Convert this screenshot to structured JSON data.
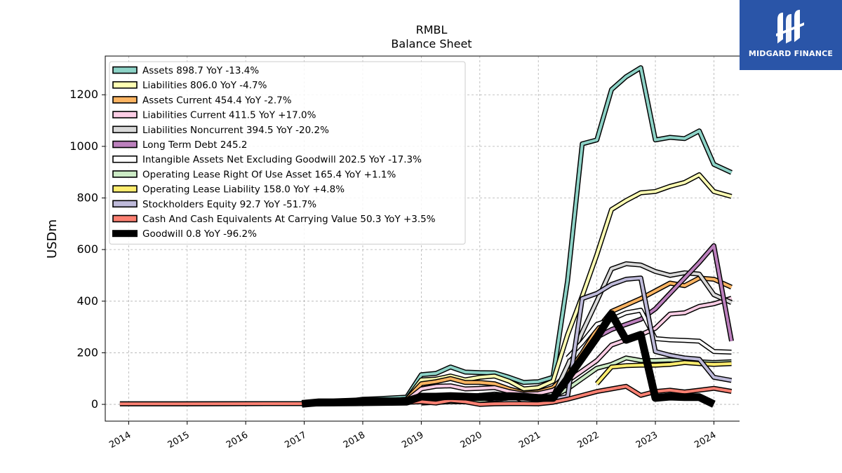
{
  "brand": {
    "name": "MIDGARD FINANCE",
    "logo_icon": "midgard-m-logo-icon"
  },
  "chart_data": {
    "type": "line",
    "title": "RMBL",
    "subtitle": "Balance  Sheet",
    "ylabel": "USDm",
    "xlabel": "",
    "xlim": [
      2013.6,
      2024.75
    ],
    "ylim": [
      -65,
      1350
    ],
    "x_ticks": [
      "2014",
      "2015",
      "2016",
      "2017",
      "2018",
      "2019",
      "2020",
      "2021",
      "2022",
      "2023",
      "2024"
    ],
    "y_ticks": [
      0,
      200,
      400,
      600,
      800,
      1000,
      1200
    ],
    "grid": true,
    "legend_position": "upper-left",
    "series": [
      {
        "name": "Assets  898.7 YoY -13.4%",
        "color": "#8dd3c7",
        "width": 4,
        "points": [
          [
            2016.96,
            5
          ],
          [
            2017.25,
            8
          ],
          [
            2017.5,
            10
          ],
          [
            2017.75,
            12
          ],
          [
            2018.0,
            20
          ],
          [
            2018.25,
            22
          ],
          [
            2018.5,
            25
          ],
          [
            2018.75,
            28
          ],
          [
            2019.0,
            115
          ],
          [
            2019.25,
            120
          ],
          [
            2019.5,
            145
          ],
          [
            2019.75,
            125
          ],
          [
            2020.0,
            123
          ],
          [
            2020.25,
            122
          ],
          [
            2020.5,
            105
          ],
          [
            2020.75,
            85
          ],
          [
            2021.0,
            88
          ],
          [
            2021.25,
            105
          ],
          [
            2021.5,
            480
          ],
          [
            2021.75,
            1010
          ],
          [
            2022.0,
            1025
          ],
          [
            2022.25,
            1220
          ],
          [
            2022.5,
            1270
          ],
          [
            2022.75,
            1305
          ],
          [
            2023.0,
            1025
          ],
          [
            2023.25,
            1035
          ],
          [
            2023.5,
            1030
          ],
          [
            2023.75,
            1060
          ],
          [
            2024.0,
            930
          ],
          [
            2024.3,
            898.7
          ]
        ]
      },
      {
        "name": "Liabilities  806.0 YoY -4.7%",
        "color": "#ffffb3",
        "width": 4,
        "points": [
          [
            2016.96,
            3
          ],
          [
            2017.5,
            5
          ],
          [
            2018.0,
            10
          ],
          [
            2018.5,
            15
          ],
          [
            2018.75,
            20
          ],
          [
            2019.0,
            95
          ],
          [
            2019.25,
            98
          ],
          [
            2019.5,
            110
          ],
          [
            2019.75,
            95
          ],
          [
            2020.0,
            105
          ],
          [
            2020.25,
            110
          ],
          [
            2020.5,
            90
          ],
          [
            2020.75,
            60
          ],
          [
            2021.0,
            65
          ],
          [
            2021.25,
            90
          ],
          [
            2021.5,
            270
          ],
          [
            2021.75,
            420
          ],
          [
            2022.0,
            580
          ],
          [
            2022.25,
            755
          ],
          [
            2022.5,
            790
          ],
          [
            2022.75,
            820
          ],
          [
            2023.0,
            825
          ],
          [
            2023.25,
            845
          ],
          [
            2023.5,
            860
          ],
          [
            2023.75,
            890
          ],
          [
            2024.0,
            825
          ],
          [
            2024.3,
            806
          ]
        ]
      },
      {
        "name": "Assets Current  454.4 YoY -2.7%",
        "color": "#fdb462",
        "width": 4,
        "points": [
          [
            2016.96,
            2
          ],
          [
            2017.5,
            5
          ],
          [
            2018.0,
            8
          ],
          [
            2018.5,
            15
          ],
          [
            2018.75,
            20
          ],
          [
            2019.0,
            80
          ],
          [
            2019.25,
            88
          ],
          [
            2019.5,
            100
          ],
          [
            2019.75,
            85
          ],
          [
            2020.0,
            85
          ],
          [
            2020.25,
            80
          ],
          [
            2020.5,
            60
          ],
          [
            2020.75,
            45
          ],
          [
            2021.0,
            48
          ],
          [
            2021.25,
            65
          ],
          [
            2021.5,
            120
          ],
          [
            2021.75,
            200
          ],
          [
            2022.0,
            290
          ],
          [
            2022.25,
            360
          ],
          [
            2022.5,
            385
          ],
          [
            2022.75,
            410
          ],
          [
            2023.0,
            440
          ],
          [
            2023.25,
            470
          ],
          [
            2023.5,
            460
          ],
          [
            2023.75,
            490
          ],
          [
            2024.0,
            485
          ],
          [
            2024.3,
            454.4
          ]
        ]
      },
      {
        "name": "Liabilities Current  411.5 YoY +17.0%",
        "color": "#fccde5",
        "width": 4,
        "points": [
          [
            2016.96,
            2
          ],
          [
            2017.5,
            5
          ],
          [
            2018.0,
            8
          ],
          [
            2018.5,
            12
          ],
          [
            2018.75,
            15
          ],
          [
            2019.0,
            60
          ],
          [
            2019.25,
            70
          ],
          [
            2019.5,
            72
          ],
          [
            2019.75,
            60
          ],
          [
            2020.0,
            62
          ],
          [
            2020.25,
            65
          ],
          [
            2020.5,
            50
          ],
          [
            2020.75,
            40
          ],
          [
            2021.0,
            42
          ],
          [
            2021.25,
            55
          ],
          [
            2021.5,
            90
          ],
          [
            2021.75,
            130
          ],
          [
            2022.0,
            170
          ],
          [
            2022.25,
            230
          ],
          [
            2022.5,
            250
          ],
          [
            2022.75,
            270
          ],
          [
            2023.0,
            295
          ],
          [
            2023.25,
            350
          ],
          [
            2023.5,
            355
          ],
          [
            2023.75,
            380
          ],
          [
            2024.0,
            390
          ],
          [
            2024.3,
            411.5
          ]
        ]
      },
      {
        "name": "Liabilities Noncurrent  394.5 YoY -20.2%",
        "color": "#d9d9d9",
        "width": 4,
        "points": [
          [
            2016.96,
            1
          ],
          [
            2018.0,
            3
          ],
          [
            2018.75,
            5
          ],
          [
            2019.0,
            20
          ],
          [
            2019.25,
            25
          ],
          [
            2019.5,
            30
          ],
          [
            2019.75,
            28
          ],
          [
            2020.0,
            35
          ],
          [
            2020.25,
            40
          ],
          [
            2020.5,
            35
          ],
          [
            2020.75,
            15
          ],
          [
            2021.0,
            20
          ],
          [
            2021.25,
            30
          ],
          [
            2021.5,
            150
          ],
          [
            2021.75,
            280
          ],
          [
            2022.0,
            400
          ],
          [
            2022.25,
            525
          ],
          [
            2022.5,
            545
          ],
          [
            2022.75,
            540
          ],
          [
            2023.0,
            515
          ],
          [
            2023.25,
            500
          ],
          [
            2023.5,
            510
          ],
          [
            2023.75,
            505
          ],
          [
            2024.0,
            425
          ],
          [
            2024.3,
            394.5
          ]
        ]
      },
      {
        "name": "Long Term Debt  245.2",
        "color": "#bc80bd",
        "width": 4,
        "points": [
          [
            2022.0,
            260
          ],
          [
            2022.25,
            290
          ],
          [
            2022.5,
            310
          ],
          [
            2022.75,
            330
          ],
          [
            2023.0,
            370
          ],
          [
            2023.25,
            430
          ],
          [
            2023.5,
            490
          ],
          [
            2023.75,
            550
          ],
          [
            2024.0,
            615
          ],
          [
            2024.3,
            245.2
          ]
        ]
      },
      {
        "name": "Intangible Assets Net Excluding Goodwill  202.5 YoY -17.3%",
        "color": "#ffffff",
        "width": 4,
        "points": [
          [
            2021.5,
            180
          ],
          [
            2021.75,
            240
          ],
          [
            2022.0,
            310
          ],
          [
            2022.25,
            330
          ],
          [
            2022.5,
            355
          ],
          [
            2022.75,
            365
          ],
          [
            2023.0,
            255
          ],
          [
            2023.25,
            250
          ],
          [
            2023.5,
            248
          ],
          [
            2023.75,
            245
          ],
          [
            2024.0,
            205
          ],
          [
            2024.3,
            202.5
          ]
        ]
      },
      {
        "name": "Operating Lease Right Of Use Asset  165.4 YoY +1.1%",
        "color": "#ccebc5",
        "width": 4,
        "points": [
          [
            2019.0,
            5
          ],
          [
            2019.25,
            8
          ],
          [
            2019.5,
            10
          ],
          [
            2019.75,
            10
          ],
          [
            2020.0,
            15
          ],
          [
            2020.25,
            20
          ],
          [
            2020.5,
            25
          ],
          [
            2020.75,
            25
          ],
          [
            2021.0,
            28
          ],
          [
            2021.25,
            30
          ],
          [
            2021.5,
            60
          ],
          [
            2021.75,
            100
          ],
          [
            2022.0,
            140
          ],
          [
            2022.25,
            155
          ],
          [
            2022.5,
            180
          ],
          [
            2022.75,
            170
          ],
          [
            2023.0,
            170
          ],
          [
            2023.25,
            172
          ],
          [
            2023.5,
            168
          ],
          [
            2023.75,
            165
          ],
          [
            2024.0,
            162
          ],
          [
            2024.3,
            165.4
          ]
        ]
      },
      {
        "name": "Operating Lease Liability  158.0 YoY +4.8%",
        "color": "#ffed6f",
        "width": 4,
        "points": [
          [
            2022.0,
            80
          ],
          [
            2022.25,
            145
          ],
          [
            2022.5,
            150
          ],
          [
            2022.75,
            152
          ],
          [
            2023.0,
            152
          ],
          [
            2023.25,
            155
          ],
          [
            2023.5,
            162
          ],
          [
            2023.75,
            158
          ],
          [
            2024.0,
            155
          ],
          [
            2024.3,
            158
          ]
        ]
      },
      {
        "name": "Stockholders Equity  92.7 YoY -51.7%",
        "color": "#bebada",
        "width": 4,
        "points": [
          [
            2013.85,
            2
          ],
          [
            2016.96,
            3
          ],
          [
            2017.5,
            5
          ],
          [
            2018.0,
            10
          ],
          [
            2018.5,
            10
          ],
          [
            2018.75,
            12
          ],
          [
            2019.0,
            25
          ],
          [
            2019.25,
            25
          ],
          [
            2019.5,
            35
          ],
          [
            2019.75,
            30
          ],
          [
            2020.0,
            25
          ],
          [
            2020.25,
            20
          ],
          [
            2020.5,
            25
          ],
          [
            2020.75,
            25
          ],
          [
            2021.0,
            25
          ],
          [
            2021.25,
            20
          ],
          [
            2021.5,
            30
          ],
          [
            2021.75,
            410
          ],
          [
            2022.0,
            430
          ],
          [
            2022.25,
            465
          ],
          [
            2022.5,
            485
          ],
          [
            2022.75,
            490
          ],
          [
            2023.0,
            205
          ],
          [
            2023.25,
            190
          ],
          [
            2023.5,
            180
          ],
          [
            2023.75,
            175
          ],
          [
            2024.0,
            105
          ],
          [
            2024.3,
            92.7
          ]
        ]
      },
      {
        "name": "Cash And Cash Equivalents At Carrying Value  50.3 YoY +3.5%",
        "color": "#fb8072",
        "width": 4,
        "points": [
          [
            2013.85,
            2
          ],
          [
            2016.96,
            3
          ],
          [
            2017.25,
            2
          ],
          [
            2017.5,
            4
          ],
          [
            2017.75,
            5
          ],
          [
            2018.0,
            8
          ],
          [
            2018.25,
            6
          ],
          [
            2018.5,
            5
          ],
          [
            2018.75,
            8
          ],
          [
            2019.0,
            10
          ],
          [
            2019.25,
            5
          ],
          [
            2019.5,
            15
          ],
          [
            2019.75,
            10
          ],
          [
            2020.0,
            0
          ],
          [
            2020.25,
            2
          ],
          [
            2020.5,
            3
          ],
          [
            2020.75,
            3
          ],
          [
            2021.0,
            2
          ],
          [
            2021.25,
            8
          ],
          [
            2021.5,
            20
          ],
          [
            2021.75,
            35
          ],
          [
            2022.0,
            50
          ],
          [
            2022.25,
            60
          ],
          [
            2022.5,
            70
          ],
          [
            2022.75,
            35
          ],
          [
            2023.0,
            50
          ],
          [
            2023.25,
            55
          ],
          [
            2023.5,
            48
          ],
          [
            2023.75,
            55
          ],
          [
            2024.0,
            62
          ],
          [
            2024.3,
            50.3
          ]
        ]
      },
      {
        "name": "Goodwill  0.8 YoY -96.2%",
        "color": "#000000",
        "width": 8,
        "points": [
          [
            2016.96,
            2
          ],
          [
            2017.25,
            8
          ],
          [
            2017.5,
            8
          ],
          [
            2017.75,
            10
          ],
          [
            2018.0,
            12
          ],
          [
            2018.25,
            12
          ],
          [
            2018.5,
            12
          ],
          [
            2018.75,
            12
          ],
          [
            2019.0,
            30
          ],
          [
            2019.25,
            30
          ],
          [
            2019.5,
            32
          ],
          [
            2019.75,
            30
          ],
          [
            2020.0,
            28
          ],
          [
            2020.25,
            30
          ],
          [
            2020.5,
            32
          ],
          [
            2020.75,
            30
          ],
          [
            2021.0,
            25
          ],
          [
            2021.25,
            25
          ],
          [
            2021.5,
            100
          ],
          [
            2021.75,
            180
          ],
          [
            2022.0,
            260
          ],
          [
            2022.25,
            350
          ],
          [
            2022.5,
            250
          ],
          [
            2022.75,
            270
          ],
          [
            2023.0,
            25
          ],
          [
            2023.25,
            30
          ],
          [
            2023.5,
            28
          ],
          [
            2023.75,
            28
          ],
          [
            2024.0,
            0.8
          ]
        ]
      }
    ]
  }
}
